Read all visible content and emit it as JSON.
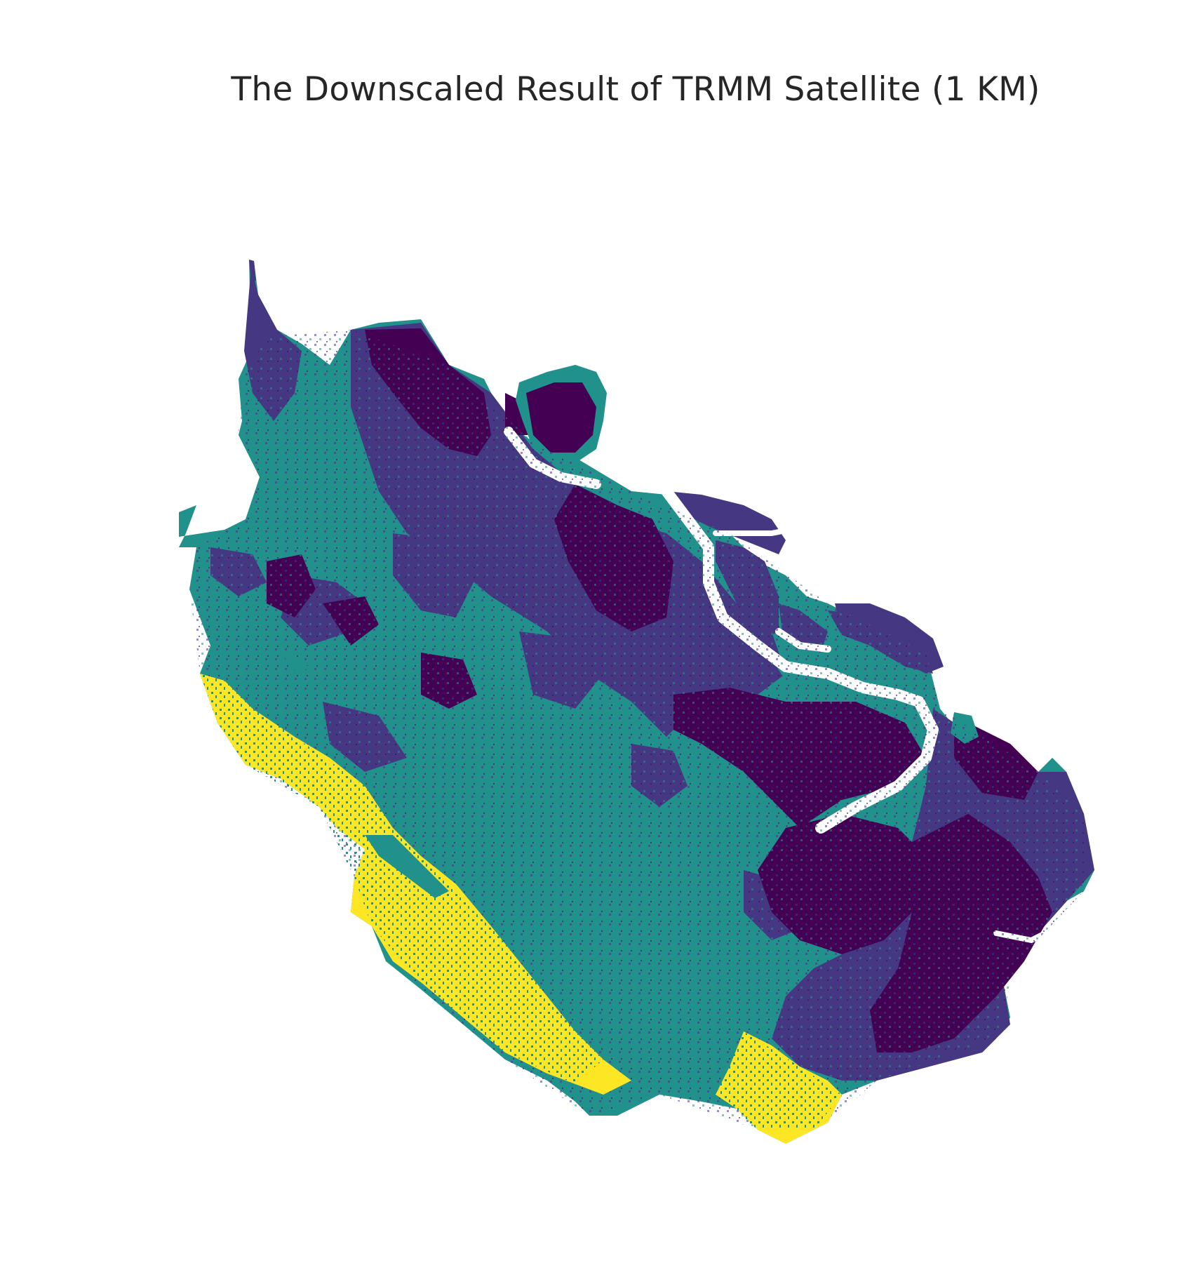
{
  "figure": {
    "title": "The Downscaled Result of TRMM Satellite (1 KM)"
  },
  "map": {
    "colormap": "viridis",
    "colors": {
      "class_1": "#440154",
      "class_2": "#453781",
      "class_3": "#21918c",
      "class_4": "#fde725",
      "background": "#ffffff"
    },
    "axes_visible": false
  }
}
